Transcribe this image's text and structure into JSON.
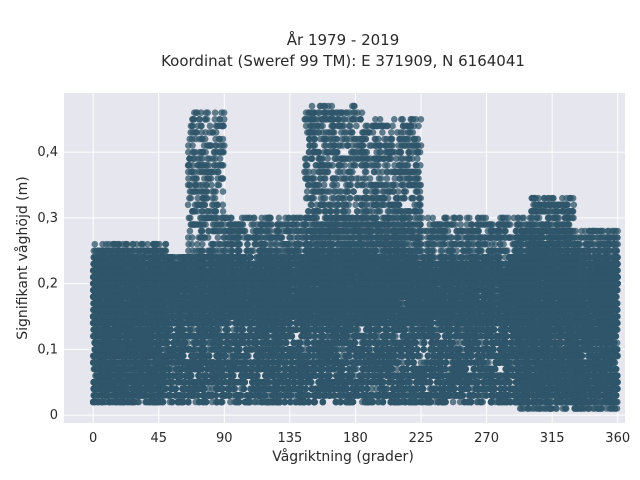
{
  "chart_data": {
    "type": "scatter",
    "title_line1": "År 1979 - 2019",
    "title_line2": "Koordinat (Sweref 99 TM): E 371909, N 6164041",
    "xlabel": "Vågriktning (grader)",
    "ylabel": "Signifikant våghöjd (m)",
    "xlim": [
      -20,
      365
    ],
    "ylim": [
      -0.012,
      0.49
    ],
    "x_ticks": [
      0,
      45,
      90,
      135,
      180,
      225,
      270,
      315,
      360
    ],
    "x_tick_labels": [
      "0",
      "45",
      "90",
      "135",
      "180",
      "225",
      "270",
      "315",
      "360"
    ],
    "y_ticks": [
      0,
      0.1,
      0.2,
      0.3,
      0.4
    ],
    "y_tick_labels": [
      "0",
      "0,1",
      "0,2",
      "0,3",
      "0,4"
    ],
    "grid": true,
    "colors": {
      "marker": "#2f5569",
      "plot_bg": "#e5e6ee",
      "grid": "#ffffff"
    },
    "regions": [
      {
        "x": [
          0,
          360
        ],
        "y": [
          0.02,
          0.24
        ],
        "density": 0.55
      },
      {
        "x": [
          0,
          360
        ],
        "y": [
          0.14,
          0.24
        ],
        "density": 0.35
      },
      {
        "x": [
          0,
          50
        ],
        "y": [
          0.02,
          0.26
        ],
        "density": 0.25
      },
      {
        "x": [
          290,
          360
        ],
        "y": [
          0.01,
          0.28
        ],
        "density": 0.25
      },
      {
        "x": [
          300,
          330
        ],
        "y": [
          0.2,
          0.33
        ],
        "density": 0.2
      },
      {
        "x": [
          65,
          90
        ],
        "y": [
          0.2,
          0.46
        ],
        "density": 0.1
      },
      {
        "x": [
          145,
          185
        ],
        "y": [
          0.22,
          0.47
        ],
        "density": 0.12
      },
      {
        "x": [
          185,
          225
        ],
        "y": [
          0.22,
          0.45
        ],
        "density": 0.12
      },
      {
        "x": [
          90,
          300
        ],
        "y": [
          0.14,
          0.3
        ],
        "density": 0.15
      }
    ]
  }
}
